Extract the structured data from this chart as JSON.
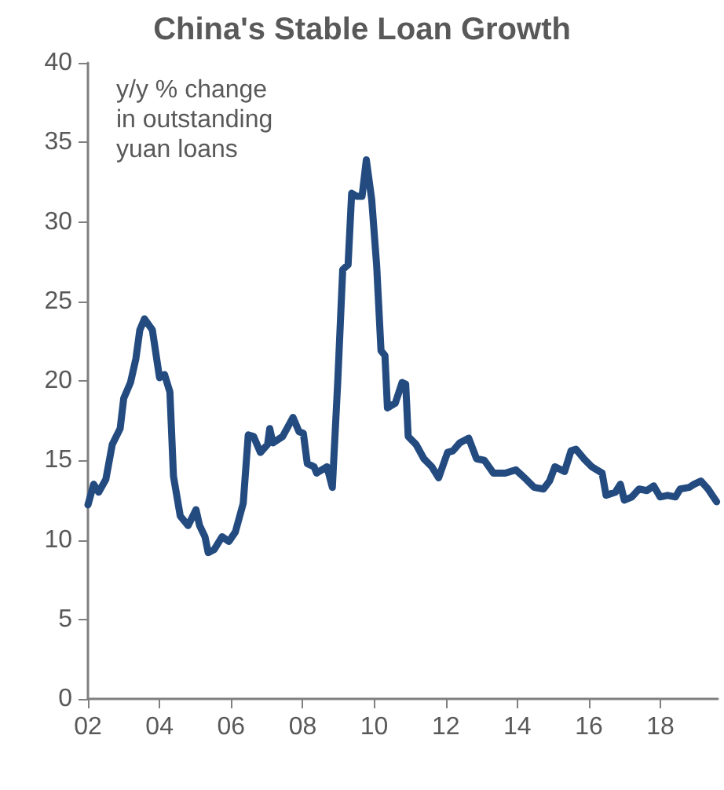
{
  "chart_data": {
    "type": "line",
    "title": "China's Stable Loan Growth",
    "annotations": [
      "y/y % change\nin outstanding\nyuan loans"
    ],
    "x": [
      2002.0,
      2002.16,
      2002.3,
      2002.5,
      2002.68,
      2002.9,
      2003.0,
      2003.19,
      2003.34,
      2003.45,
      2003.58,
      2003.8,
      2004.0,
      2004.14,
      2004.29,
      2004.39,
      2004.58,
      2004.8,
      2005.02,
      2005.12,
      2005.27,
      2005.36,
      2005.53,
      2005.75,
      2005.94,
      2006.12,
      2006.34,
      2006.48,
      2006.63,
      2006.82,
      2007.02,
      2007.08,
      2007.17,
      2007.44,
      2007.73,
      2007.9,
      2008.02,
      2008.13,
      2008.32,
      2008.39,
      2008.68,
      2008.83,
      2008.98,
      2009.12,
      2009.27,
      2009.37,
      2009.52,
      2009.66,
      2009.78,
      2009.93,
      2010.07,
      2010.19,
      2010.3,
      2010.37,
      2010.59,
      2010.78,
      2010.88,
      2010.95,
      2011.17,
      2011.39,
      2011.61,
      2011.8,
      2012.05,
      2012.2,
      2012.39,
      2012.64,
      2012.86,
      2013.08,
      2013.33,
      2013.66,
      2013.96,
      2014.25,
      2014.47,
      2014.73,
      2014.9,
      2015.05,
      2015.32,
      2015.5,
      2015.64,
      2015.86,
      2016.08,
      2016.37,
      2016.48,
      2016.74,
      2016.88,
      2016.99,
      2017.2,
      2017.4,
      2017.62,
      2017.81,
      2017.99,
      2018.2,
      2018.42,
      2018.55,
      2018.8,
      2018.94,
      2019.13,
      2019.33,
      2019.57
    ],
    "series": [
      {
        "color": "#234b80",
        "values": [
          12.2,
          13.5,
          13.0,
          13.8,
          16.0,
          17.0,
          18.9,
          19.9,
          21.4,
          23.2,
          23.9,
          23.2,
          20.2,
          20.4,
          19.3,
          14.0,
          11.5,
          10.9,
          11.9,
          10.9,
          10.2,
          9.2,
          9.4,
          10.2,
          9.9,
          10.5,
          12.3,
          16.6,
          16.5,
          15.5,
          16.0,
          17.0,
          16.1,
          16.5,
          17.7,
          16.8,
          16.7,
          14.8,
          14.6,
          14.2,
          14.6,
          13.3,
          19.9,
          27.0,
          27.3,
          31.8,
          31.6,
          31.6,
          33.9,
          31.4,
          27.2,
          21.9,
          21.6,
          18.3,
          18.6,
          19.9,
          19.8,
          16.5,
          16.0,
          15.1,
          14.6,
          13.9,
          15.5,
          15.6,
          16.1,
          16.4,
          15.1,
          15.0,
          14.2,
          14.2,
          14.4,
          13.8,
          13.3,
          13.2,
          13.7,
          14.6,
          14.3,
          15.6,
          15.7,
          15.1,
          14.6,
          14.2,
          12.8,
          13.0,
          13.5,
          12.5,
          12.7,
          13.2,
          13.1,
          13.4,
          12.7,
          12.8,
          12.7,
          13.2,
          13.3,
          13.5,
          13.7,
          13.2,
          12.4
        ]
      }
    ],
    "xlim": [
      2002,
      2019.6
    ],
    "xticks": [
      {
        "value": 2002,
        "label": "02"
      },
      {
        "value": 2004,
        "label": "04"
      },
      {
        "value": 2006,
        "label": "06"
      },
      {
        "value": 2008,
        "label": "08"
      },
      {
        "value": 2010,
        "label": "10"
      },
      {
        "value": 2012,
        "label": "12"
      },
      {
        "value": 2014,
        "label": "14"
      },
      {
        "value": 2016,
        "label": "16"
      },
      {
        "value": 2018,
        "label": "18"
      }
    ],
    "ylim": [
      0,
      40
    ],
    "yticks": [
      0,
      5,
      10,
      15,
      20,
      25,
      30,
      35,
      40
    ],
    "grid": false,
    "marker": "none",
    "line_style": "solid"
  }
}
